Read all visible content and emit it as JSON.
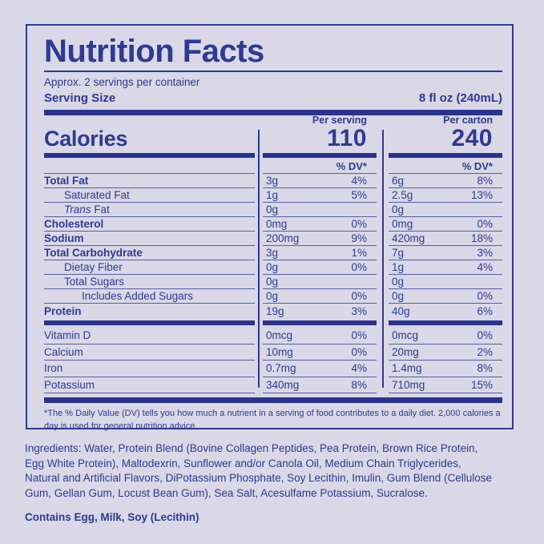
{
  "colors": {
    "page_bg": "#dad7e6",
    "ink": "#2d3b92",
    "bar": "#28348d",
    "hairline": "#5560a6"
  },
  "header": {
    "title": "Nutrition Facts",
    "servings_note": "Approx. 2 servings per container",
    "serving_size_label": "Serving Size",
    "serving_size_value": "8 fl oz (240mL)"
  },
  "calories": {
    "label": "Calories",
    "per_serving_label": "Per serving",
    "per_serving_value": "110",
    "per_carton_label": "Per carton",
    "per_carton_value": "240",
    "dv_header": "% DV*"
  },
  "nutrients": [
    {
      "label": "Total Fat",
      "ps_amount": "3g",
      "ps_dv": "4%",
      "pc_amount": "6g",
      "pc_dv": "8%"
    },
    {
      "label": "Saturated Fat",
      "ps_amount": "1g",
      "ps_dv": "5%",
      "pc_amount": "2.5g",
      "pc_dv": "13%"
    },
    {
      "label_italic": "Trans",
      "label_rest": " Fat",
      "ps_amount": "0g",
      "ps_dv": "",
      "pc_amount": "0g",
      "pc_dv": ""
    },
    {
      "label": "Cholesterol",
      "ps_amount": "0mg",
      "ps_dv": "0%",
      "pc_amount": "0mg",
      "pc_dv": "0%"
    },
    {
      "label": "Sodium",
      "ps_amount": "200mg",
      "ps_dv": "9%",
      "pc_amount": "420mg",
      "pc_dv": "18%"
    },
    {
      "label": "Total Carbohydrate",
      "ps_amount": "3g",
      "ps_dv": "1%",
      "pc_amount": "7g",
      "pc_dv": "3%"
    },
    {
      "label": "Dietay Fiber",
      "ps_amount": "0g",
      "ps_dv": "0%",
      "pc_amount": "1g",
      "pc_dv": "4%"
    },
    {
      "label": "Total Sugars",
      "ps_amount": "0g",
      "ps_dv": "",
      "pc_amount": "0g",
      "pc_dv": ""
    },
    {
      "label": "Includes Added Sugars",
      "ps_amount": "0g",
      "ps_dv": "0%",
      "pc_amount": "0g",
      "pc_dv": "0%"
    },
    {
      "label": "Protein",
      "ps_amount": "19g",
      "ps_dv": "3%",
      "pc_amount": "40g",
      "pc_dv": "6%"
    }
  ],
  "minerals": [
    {
      "label": "Vitamin D",
      "ps_amount": "0mcg",
      "ps_dv": "0%",
      "pc_amount": "0mcg",
      "pc_dv": "0%"
    },
    {
      "label": "Calcium",
      "ps_amount": "10mg",
      "ps_dv": "0%",
      "pc_amount": "20mg",
      "pc_dv": "2%"
    },
    {
      "label": "Iron",
      "ps_amount": "0.7mg",
      "ps_dv": "4%",
      "pc_amount": "1.4mg",
      "pc_dv": "8%"
    },
    {
      "label": "Potassium",
      "ps_amount": "340mg",
      "ps_dv": "8%",
      "pc_amount": "710mg",
      "pc_dv": "15%"
    }
  ],
  "footnote": "*The % Daily Value (DV) tells you how much a nutrient in a serving of food contributes to a daily diet. 2,000 calories a day is used for general nutrition advice.",
  "ingredients": "Ingredients: Water, Protein Blend (Bovine Collagen Peptides, Pea Protein, Brown Rice Protein, Egg White Protein), Maltodexrin, Sunflower and/or Canola Oil, Medium Chain Triglycerides, Natural and Artificial Flavors, DiPotassium Phosphate, Soy Lecithin, Imulin, Gum Blend (Cellulose Gum, Gellan Gum, Locust Bean Gum), Sea Salt, Acesulfame Potassium, Sucralose.",
  "contains": "Contains Egg, Milk, Soy (Lecithin)"
}
